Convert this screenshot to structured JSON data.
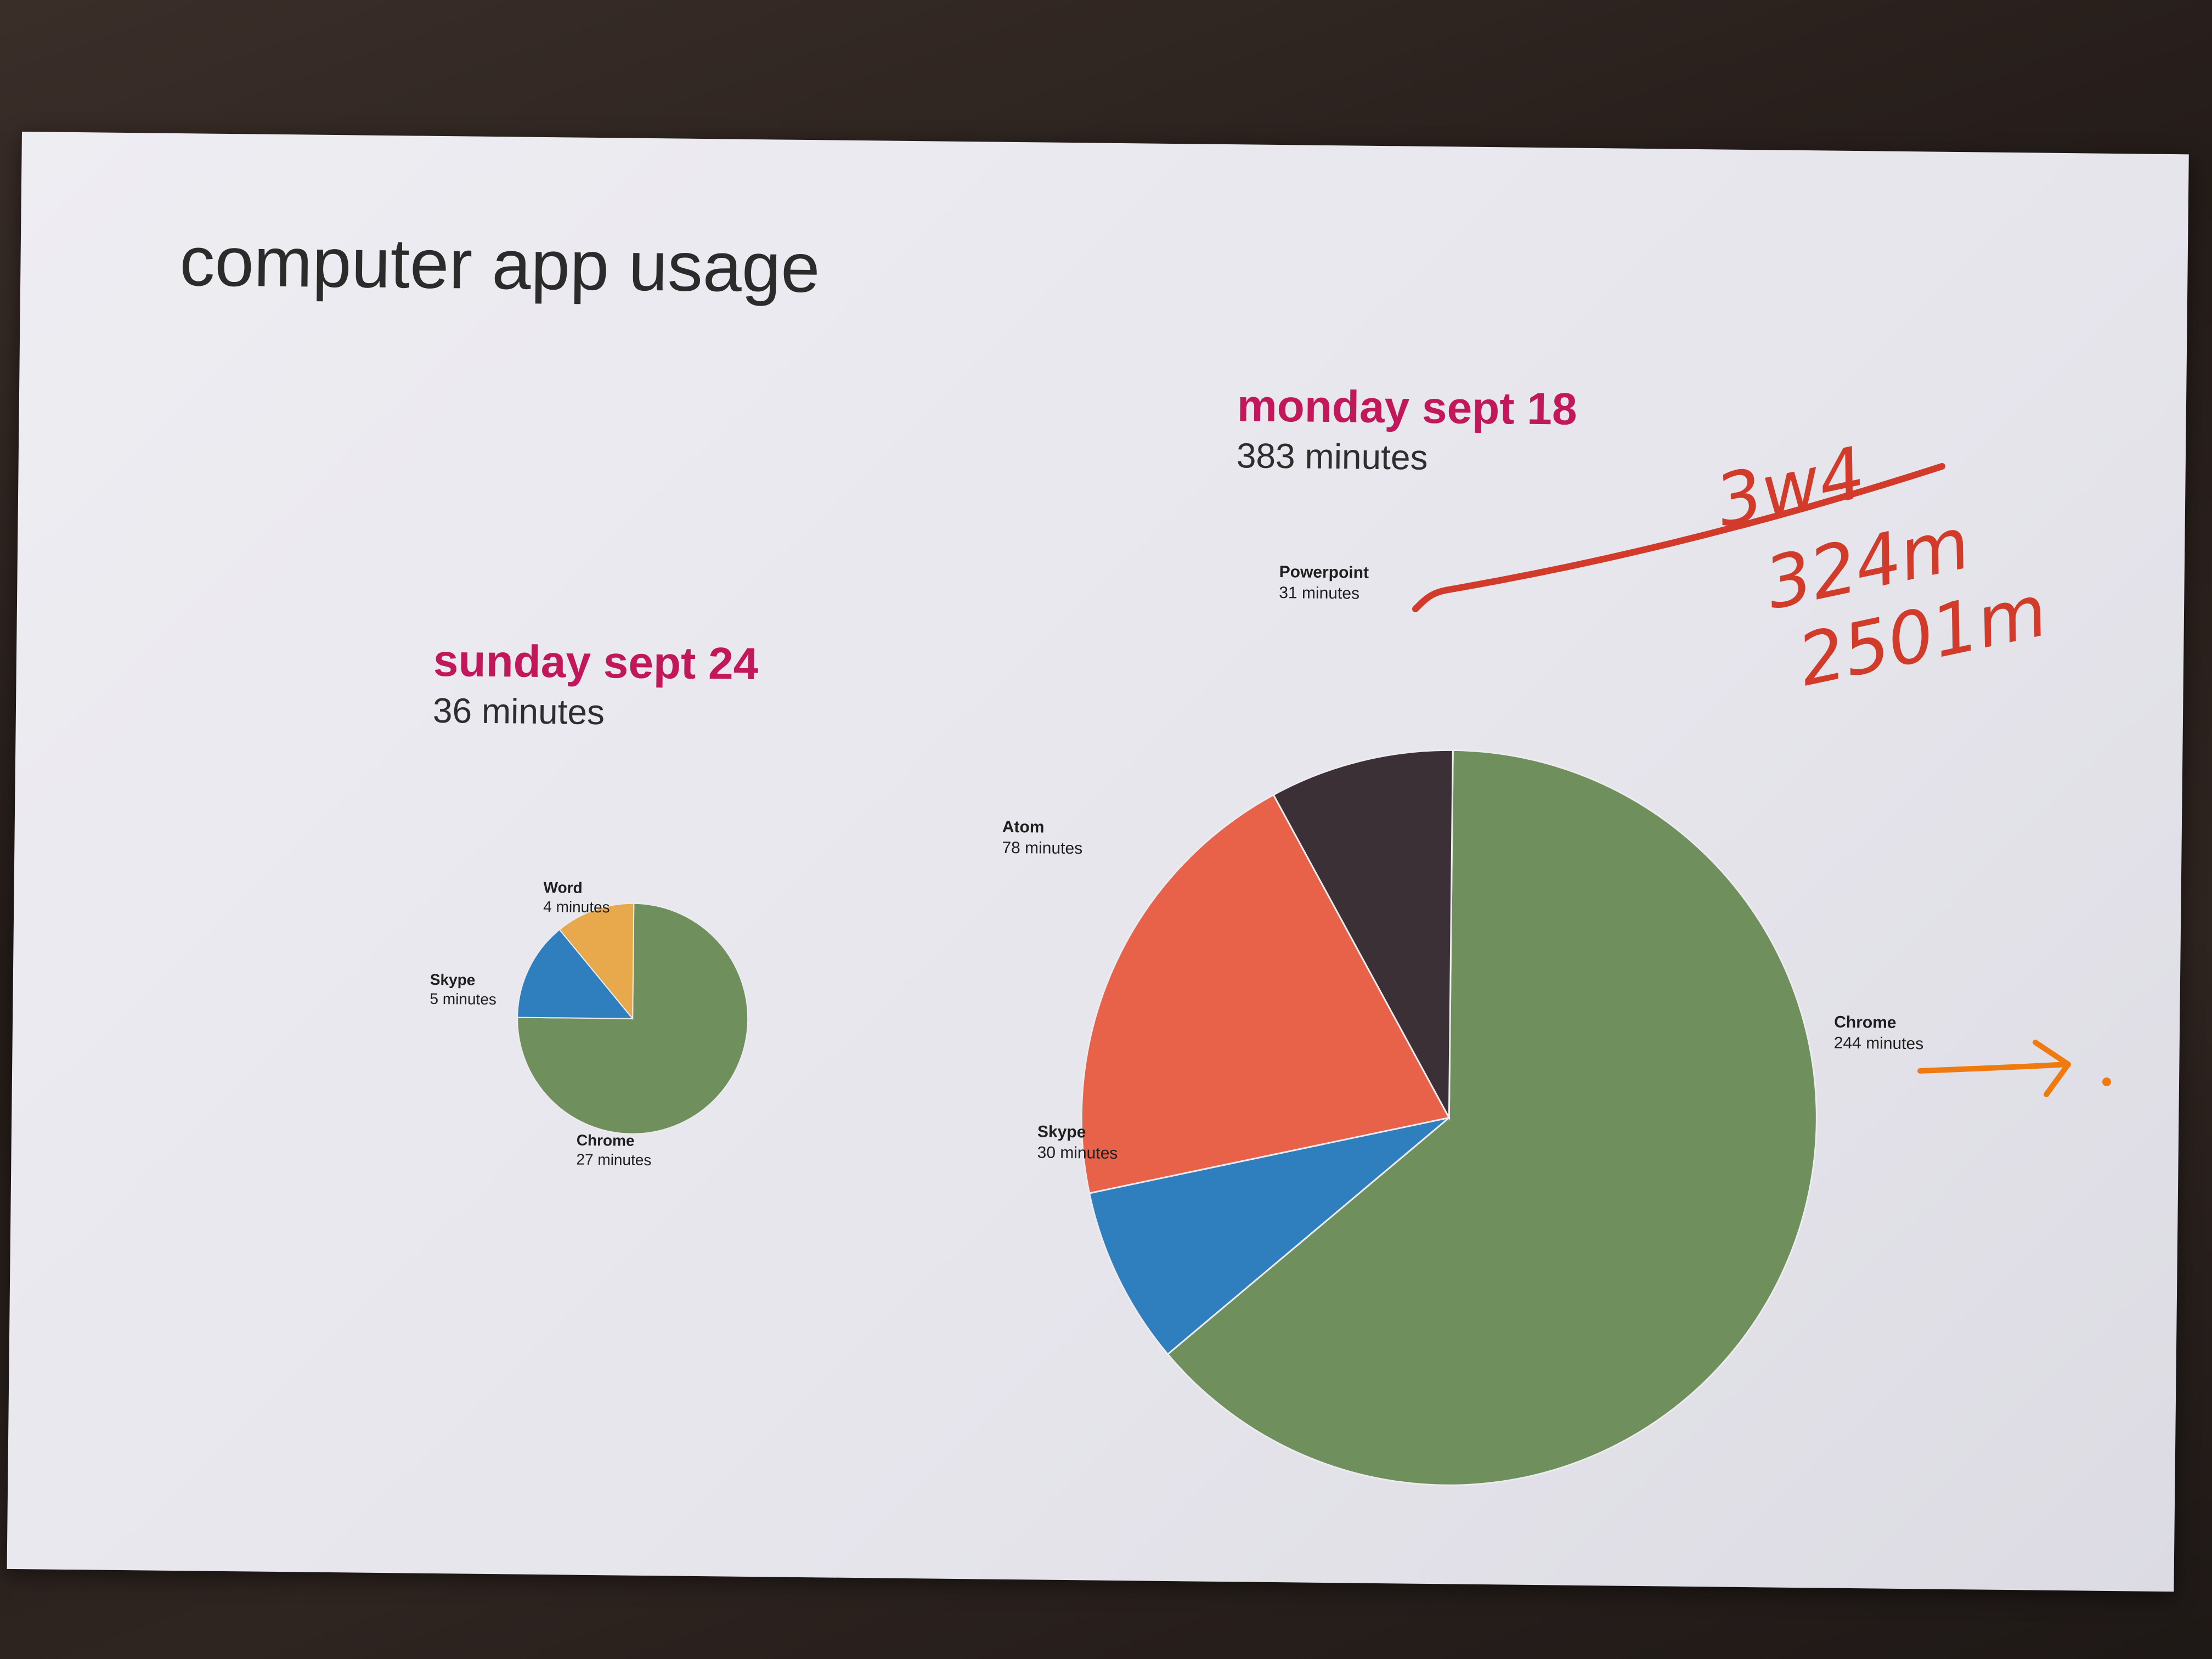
{
  "title": "computer app usage",
  "chart_data": [
    {
      "type": "pie",
      "title": "sunday sept 24",
      "subtitle": "36 minutes",
      "slices": [
        {
          "name": "Chrome",
          "value": 27,
          "label": "27 minutes",
          "color": "#6f8f5c"
        },
        {
          "name": "Skype",
          "value": 5,
          "label": "5 minutes",
          "color": "#2f7fbf"
        },
        {
          "name": "Word",
          "value": 4,
          "label": "4 minutes",
          "color": "#e8a94c"
        }
      ]
    },
    {
      "type": "pie",
      "title": "monday sept 18",
      "subtitle": "383 minutes",
      "slices": [
        {
          "name": "Chrome",
          "value": 244,
          "label": "244 minutes",
          "color": "#6f8f5c"
        },
        {
          "name": "Skype",
          "value": 30,
          "label": "30 minutes",
          "color": "#2f7fbf"
        },
        {
          "name": "Atom",
          "value": 78,
          "label": "78 minutes",
          "color": "#e8624a"
        },
        {
          "name": "Powerpoint",
          "value": 31,
          "label": "31 minutes",
          "color": "#3a3035"
        }
      ]
    }
  ],
  "handwriting": {
    "line1": "3w4",
    "line2": "324m",
    "line3": "2501m",
    "ink_red": "#d23a2a",
    "ink_orange": "#f07a10"
  }
}
